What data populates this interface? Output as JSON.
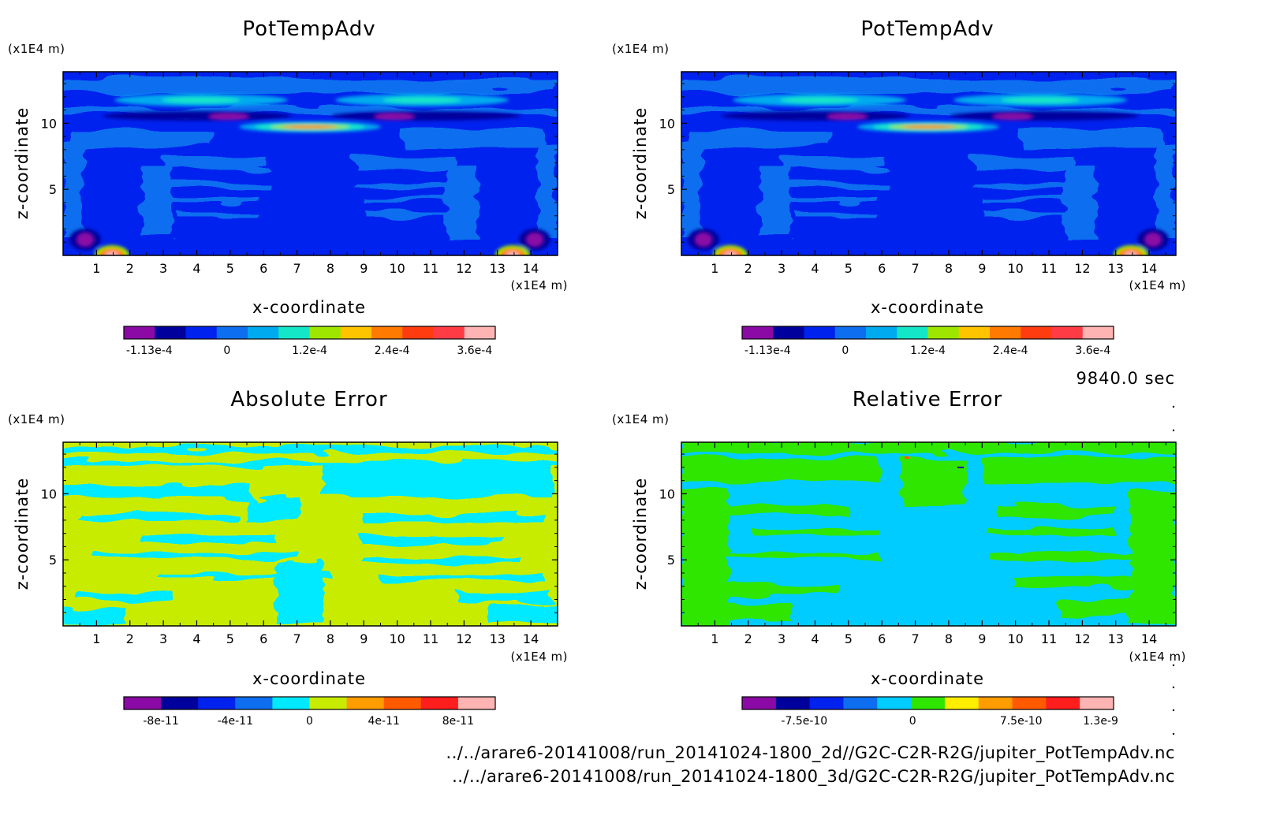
{
  "time_label": "9840.0 sec",
  "footer": [
    "../../arare6-20141008/run_20141024-1800_2d//G2C-C2R-R2G/jupiter_PotTempAdv.nc",
    "../../arare6-20141008/run_20141024-1800_3d/G2C-C2R-R2G/jupiter_PotTempAdv.nc"
  ],
  "chart_data": [
    {
      "type": "heatmap",
      "title": "PotTempAdv",
      "xlabel": "x-coordinate",
      "ylabel": "z-coordinate",
      "x_unit": "(x1E4 m)",
      "y_unit": "(x1E4 m)",
      "xlim": [
        0,
        14.8
      ],
      "ylim": [
        0,
        13.9
      ],
      "x_ticks": [
        1,
        2,
        3,
        4,
        5,
        6,
        7,
        8,
        9,
        10,
        11,
        12,
        13,
        14
      ],
      "y_ticks": [
        5,
        10
      ],
      "colorbar": {
        "colors": [
          "#8b0aa5",
          "#00009c",
          "#0022ee",
          "#0e6ef0",
          "#00aaee",
          "#14e6c8",
          "#9ee600",
          "#ffc400",
          "#ff7a00",
          "#ff3c10",
          "#ff3c46",
          "#ffb4b4"
        ],
        "tick_labels": [
          "-1.13e-4",
          "0",
          "1.2e-4",
          "2.4e-4",
          "3.6e-4"
        ],
        "tick_values": [
          -0.000113,
          0,
          0.00012,
          0.00024,
          0.00036
        ],
        "range": [
          -0.00015,
          0.00039
        ]
      }
    },
    {
      "type": "heatmap",
      "title": "PotTempAdv",
      "xlabel": "x-coordinate",
      "ylabel": "z-coordinate",
      "x_unit": "(x1E4 m)",
      "y_unit": "(x1E4 m)",
      "xlim": [
        0,
        14.8
      ],
      "ylim": [
        0,
        13.9
      ],
      "x_ticks": [
        1,
        2,
        3,
        4,
        5,
        6,
        7,
        8,
        9,
        10,
        11,
        12,
        13,
        14
      ],
      "y_ticks": [
        5,
        10
      ],
      "colorbar": {
        "colors": [
          "#8b0aa5",
          "#00009c",
          "#0022ee",
          "#0e6ef0",
          "#00aaee",
          "#14e6c8",
          "#9ee600",
          "#ffc400",
          "#ff7a00",
          "#ff3c10",
          "#ff3c46",
          "#ffb4b4"
        ],
        "tick_labels": [
          "-1.13e-4",
          "0",
          "1.2e-4",
          "2.4e-4",
          "3.6e-4"
        ],
        "tick_values": [
          -0.000113,
          0,
          0.00012,
          0.00024,
          0.00036
        ],
        "range": [
          -0.00015,
          0.00039
        ]
      }
    },
    {
      "type": "heatmap",
      "title": "Absolute Error",
      "xlabel": "x-coordinate",
      "ylabel": "z-coordinate",
      "x_unit": "(x1E4 m)",
      "y_unit": "(x1E4 m)",
      "xlim": [
        0,
        14.8
      ],
      "ylim": [
        0,
        13.9
      ],
      "x_ticks": [
        1,
        2,
        3,
        4,
        5,
        6,
        7,
        8,
        9,
        10,
        11,
        12,
        13,
        14
      ],
      "y_ticks": [
        5,
        10
      ],
      "colorbar": {
        "colors": [
          "#8b0aa5",
          "#00009c",
          "#0022ee",
          "#0e6ef0",
          "#00eaff",
          "#c8ec00",
          "#ff9c00",
          "#ff5a00",
          "#ff1e1e",
          "#ffb4b4"
        ],
        "tick_labels": [
          "-8e-11",
          "-4e-11",
          "0",
          "4e-11",
          "8e-11"
        ],
        "tick_values": [
          -8e-11,
          -4e-11,
          0,
          4e-11,
          8e-11
        ],
        "range": [
          -1e-10,
          1e-10
        ]
      }
    },
    {
      "type": "heatmap",
      "title": "Relative Error",
      "xlabel": "x-coordinate",
      "ylabel": "z-coordinate",
      "x_unit": "(x1E4 m)",
      "y_unit": "(x1E4 m)",
      "xlim": [
        0,
        14.8
      ],
      "ylim": [
        0,
        13.9
      ],
      "x_ticks": [
        1,
        2,
        3,
        4,
        5,
        6,
        7,
        8,
        9,
        10,
        11,
        12,
        13,
        14
      ],
      "y_ticks": [
        5,
        10
      ],
      "colorbar": {
        "colors": [
          "#8b0aa5",
          "#00009c",
          "#0022ee",
          "#0e6ef0",
          "#00ccff",
          "#2ee600",
          "#ffee00",
          "#ff9c00",
          "#ff5a00",
          "#ff1e1e",
          "#ffb4b4"
        ],
        "tick_labels": [
          "-7.5e-10",
          "0",
          "7.5e-10",
          "1.3e-9"
        ],
        "tick_values": [
          -7.5e-10,
          0,
          7.5e-10,
          1.3e-09
        ],
        "range": [
          -1.18e-09,
          1.39e-09
        ]
      }
    }
  ]
}
